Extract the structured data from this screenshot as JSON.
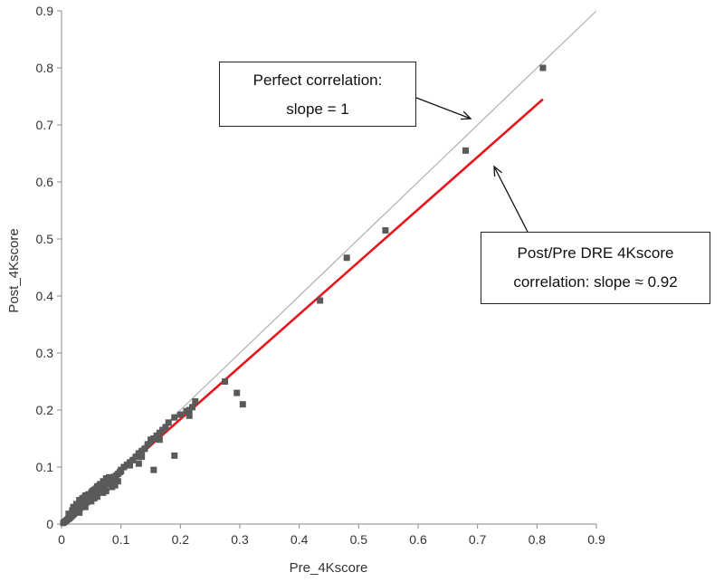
{
  "chart_data": {
    "type": "scatter",
    "xlabel": "Pre_4Kscore",
    "ylabel": "Post_4Kscore",
    "xlim": [
      0,
      0.9
    ],
    "ylim": [
      0,
      0.9
    ],
    "x_ticks": [
      "0",
      "0.1",
      "0.2",
      "0.3",
      "0.4",
      "0.5",
      "0.6",
      "0.7",
      "0.8",
      "0.9"
    ],
    "y_ticks": [
      "0",
      "0.1",
      "0.2",
      "0.3",
      "0.4",
      "0.5",
      "0.6",
      "0.7",
      "0.8",
      "0.9"
    ],
    "grid": false,
    "points": [
      [
        0.003,
        0.002
      ],
      [
        0.005,
        0.004
      ],
      [
        0.007,
        0.005
      ],
      [
        0.009,
        0.007
      ],
      [
        0.011,
        0.009
      ],
      [
        0.013,
        0.01
      ],
      [
        0.015,
        0.012
      ],
      [
        0.017,
        0.014
      ],
      [
        0.019,
        0.016
      ],
      [
        0.021,
        0.018
      ],
      [
        0.023,
        0.02
      ],
      [
        0.025,
        0.022
      ],
      [
        0.027,
        0.024
      ],
      [
        0.029,
        0.026
      ],
      [
        0.031,
        0.028
      ],
      [
        0.033,
        0.03
      ],
      [
        0.035,
        0.031
      ],
      [
        0.037,
        0.033
      ],
      [
        0.039,
        0.035
      ],
      [
        0.041,
        0.037
      ],
      [
        0.043,
        0.039
      ],
      [
        0.045,
        0.04
      ],
      [
        0.047,
        0.043
      ],
      [
        0.049,
        0.045
      ],
      [
        0.051,
        0.047
      ],
      [
        0.053,
        0.049
      ],
      [
        0.055,
        0.051
      ],
      [
        0.057,
        0.053
      ],
      [
        0.059,
        0.055
      ],
      [
        0.061,
        0.057
      ],
      [
        0.063,
        0.059
      ],
      [
        0.065,
        0.061
      ],
      [
        0.067,
        0.063
      ],
      [
        0.069,
        0.064
      ],
      [
        0.071,
        0.066
      ],
      [
        0.073,
        0.068
      ],
      [
        0.075,
        0.07
      ],
      [
        0.077,
        0.072
      ],
      [
        0.08,
        0.074
      ],
      [
        0.083,
        0.077
      ],
      [
        0.086,
        0.08
      ],
      [
        0.089,
        0.083
      ],
      [
        0.092,
        0.085
      ],
      [
        0.095,
        0.088
      ],
      [
        0.098,
        0.091
      ],
      [
        0.02,
        0.03
      ],
      [
        0.025,
        0.035
      ],
      [
        0.03,
        0.042
      ],
      [
        0.035,
        0.045
      ],
      [
        0.04,
        0.05
      ],
      [
        0.045,
        0.052
      ],
      [
        0.05,
        0.055
      ],
      [
        0.055,
        0.06
      ],
      [
        0.06,
        0.066
      ],
      [
        0.065,
        0.07
      ],
      [
        0.07,
        0.075
      ],
      [
        0.075,
        0.08
      ],
      [
        0.08,
        0.082
      ],
      [
        0.085,
        0.078
      ],
      [
        0.09,
        0.072
      ],
      [
        0.03,
        0.02
      ],
      [
        0.04,
        0.03
      ],
      [
        0.05,
        0.04
      ],
      [
        0.055,
        0.045
      ],
      [
        0.06,
        0.048
      ],
      [
        0.07,
        0.055
      ],
      [
        0.075,
        0.058
      ],
      [
        0.085,
        0.065
      ],
      [
        0.09,
        0.068
      ],
      [
        0.095,
        0.075
      ],
      [
        0.012,
        0.018
      ],
      [
        0.018,
        0.024
      ],
      [
        0.022,
        0.028
      ],
      [
        0.028,
        0.034
      ],
      [
        0.034,
        0.04
      ],
      [
        0.038,
        0.046
      ],
      [
        0.044,
        0.05
      ],
      [
        0.052,
        0.058
      ],
      [
        0.058,
        0.062
      ],
      [
        0.064,
        0.068
      ],
      [
        0.1,
        0.093
      ],
      [
        0.105,
        0.1
      ],
      [
        0.11,
        0.104
      ],
      [
        0.115,
        0.108
      ],
      [
        0.12,
        0.112
      ],
      [
        0.125,
        0.118
      ],
      [
        0.13,
        0.124
      ],
      [
        0.135,
        0.128
      ],
      [
        0.14,
        0.132
      ],
      [
        0.145,
        0.14
      ],
      [
        0.15,
        0.145
      ],
      [
        0.155,
        0.15
      ],
      [
        0.16,
        0.155
      ],
      [
        0.165,
        0.16
      ],
      [
        0.17,
        0.165
      ],
      [
        0.175,
        0.17
      ],
      [
        0.18,
        0.178
      ],
      [
        0.1,
        0.095
      ],
      [
        0.115,
        0.103
      ],
      [
        0.13,
        0.106
      ],
      [
        0.135,
        0.118
      ],
      [
        0.15,
        0.148
      ],
      [
        0.155,
        0.095
      ],
      [
        0.165,
        0.148
      ],
      [
        0.19,
        0.187
      ],
      [
        0.19,
        0.12
      ],
      [
        0.2,
        0.192
      ],
      [
        0.21,
        0.198
      ],
      [
        0.215,
        0.19
      ],
      [
        0.215,
        0.2
      ],
      [
        0.22,
        0.205
      ],
      [
        0.225,
        0.215
      ],
      [
        0.275,
        0.25
      ],
      [
        0.295,
        0.23
      ],
      [
        0.305,
        0.21
      ],
      [
        0.435,
        0.392
      ],
      [
        0.48,
        0.467
      ],
      [
        0.545,
        0.515
      ],
      [
        0.68,
        0.655
      ],
      [
        0.81,
        0.8
      ]
    ],
    "lines": [
      {
        "x": [
          0,
          0.9
        ],
        "y": [
          0,
          0.9
        ],
        "color": "#b0b0b0"
      },
      {
        "x": [
          0,
          0.81
        ],
        "y": [
          0,
          0.745
        ],
        "color": "#e8141c"
      }
    ],
    "marker_color": "#5a5a5a",
    "annotations": {
      "perfect": {
        "line1": "Perfect correlation:",
        "line2": "slope = 1"
      },
      "fit": {
        "line1": "Post/Pre DRE 4Kscore",
        "line2": "correlation: slope ≈ 0.92"
      }
    }
  }
}
